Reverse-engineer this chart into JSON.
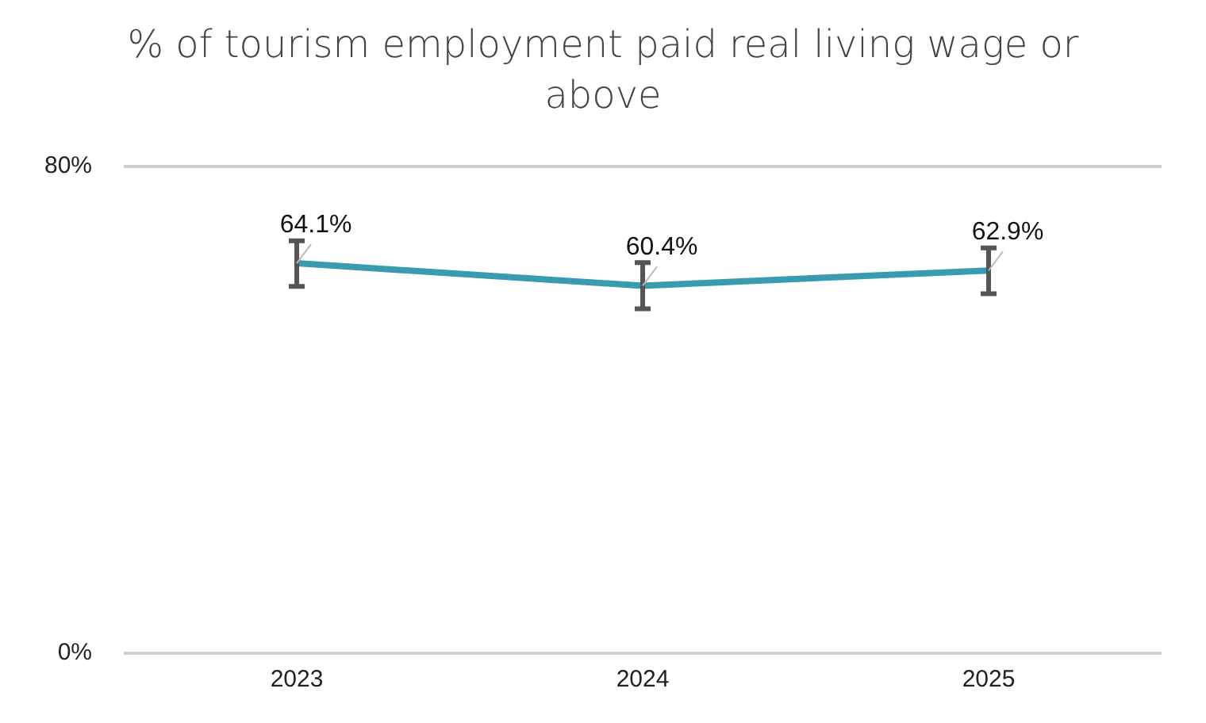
{
  "chart_data": {
    "type": "line",
    "title": "% of tourism employment paid real living wage or above",
    "categories": [
      "2023",
      "2024",
      "2025"
    ],
    "series": [
      {
        "color": "#3a9ab0",
        "values": [
          64.1,
          60.4,
          62.9
        ],
        "errors": [
          [
            60.3,
            67.8
          ],
          [
            56.6,
            64.2
          ],
          [
            59.1,
            66.6
          ]
        ],
        "value_labels": [
          "64.1%",
          "60.4%",
          "62.9%"
        ]
      }
    ],
    "ylim": [
      0,
      80
    ],
    "yticks": [
      {
        "value": 0,
        "label": "0%"
      },
      {
        "value": 80,
        "label": "80%"
      }
    ],
    "legend": false,
    "marker": "none",
    "line_style": "solid"
  }
}
